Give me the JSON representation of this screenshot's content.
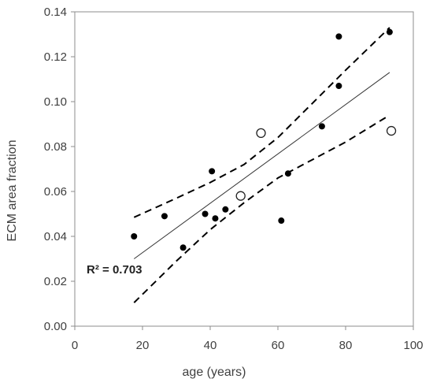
{
  "chart_data": {
    "type": "scatter",
    "title": "",
    "xlabel": "age (years)",
    "ylabel": "ECM area fraction",
    "xlim": [
      0,
      100
    ],
    "ylim": [
      0,
      0.14
    ],
    "xticks": [
      0,
      20,
      40,
      60,
      80,
      100
    ],
    "yticks": [
      0.0,
      0.02,
      0.04,
      0.06,
      0.08,
      0.1,
      0.12,
      0.14
    ],
    "ytick_labels": [
      "0.00",
      "0.02",
      "0.04",
      "0.06",
      "0.08",
      "0.10",
      "0.12",
      "0.14"
    ],
    "grid": false,
    "series": [
      {
        "marker": "filled-circle",
        "points": [
          {
            "x": 17.5,
            "y": 0.04
          },
          {
            "x": 26.5,
            "y": 0.049
          },
          {
            "x": 32,
            "y": 0.035
          },
          {
            "x": 38.5,
            "y": 0.05
          },
          {
            "x": 40.5,
            "y": 0.069
          },
          {
            "x": 41.5,
            "y": 0.048
          },
          {
            "x": 44.5,
            "y": 0.052
          },
          {
            "x": 61,
            "y": 0.047
          },
          {
            "x": 63,
            "y": 0.068
          },
          {
            "x": 73,
            "y": 0.089
          },
          {
            "x": 78,
            "y": 0.107
          },
          {
            "x": 78,
            "y": 0.129
          },
          {
            "x": 93,
            "y": 0.131
          }
        ]
      },
      {
        "marker": "open-circle",
        "points": [
          {
            "x": 49,
            "y": 0.058
          },
          {
            "x": 55,
            "y": 0.086
          },
          {
            "x": 93.5,
            "y": 0.087
          }
        ]
      }
    ],
    "trendline": {
      "style": "solid",
      "points": [
        {
          "x": 17.5,
          "y": 0.03
        },
        {
          "x": 93,
          "y": 0.113
        }
      ]
    },
    "confidence_bands": [
      {
        "style": "dashed",
        "points": [
          {
            "x": 17.5,
            "y": 0.0485
          },
          {
            "x": 30,
            "y": 0.057
          },
          {
            "x": 40,
            "y": 0.064
          },
          {
            "x": 50,
            "y": 0.072
          },
          {
            "x": 60,
            "y": 0.084
          },
          {
            "x": 70,
            "y": 0.099
          },
          {
            "x": 80,
            "y": 0.114
          },
          {
            "x": 93,
            "y": 0.133
          }
        ]
      },
      {
        "style": "dashed",
        "points": [
          {
            "x": 17.5,
            "y": 0.0105
          },
          {
            "x": 30,
            "y": 0.029
          },
          {
            "x": 40,
            "y": 0.043
          },
          {
            "x": 50,
            "y": 0.055
          },
          {
            "x": 60,
            "y": 0.066
          },
          {
            "x": 70,
            "y": 0.074
          },
          {
            "x": 80,
            "y": 0.082
          },
          {
            "x": 93,
            "y": 0.094
          }
        ]
      }
    ],
    "annotations": [
      {
        "text": "R² = 0.703",
        "x": 3.5,
        "y": 0.0235
      }
    ]
  }
}
